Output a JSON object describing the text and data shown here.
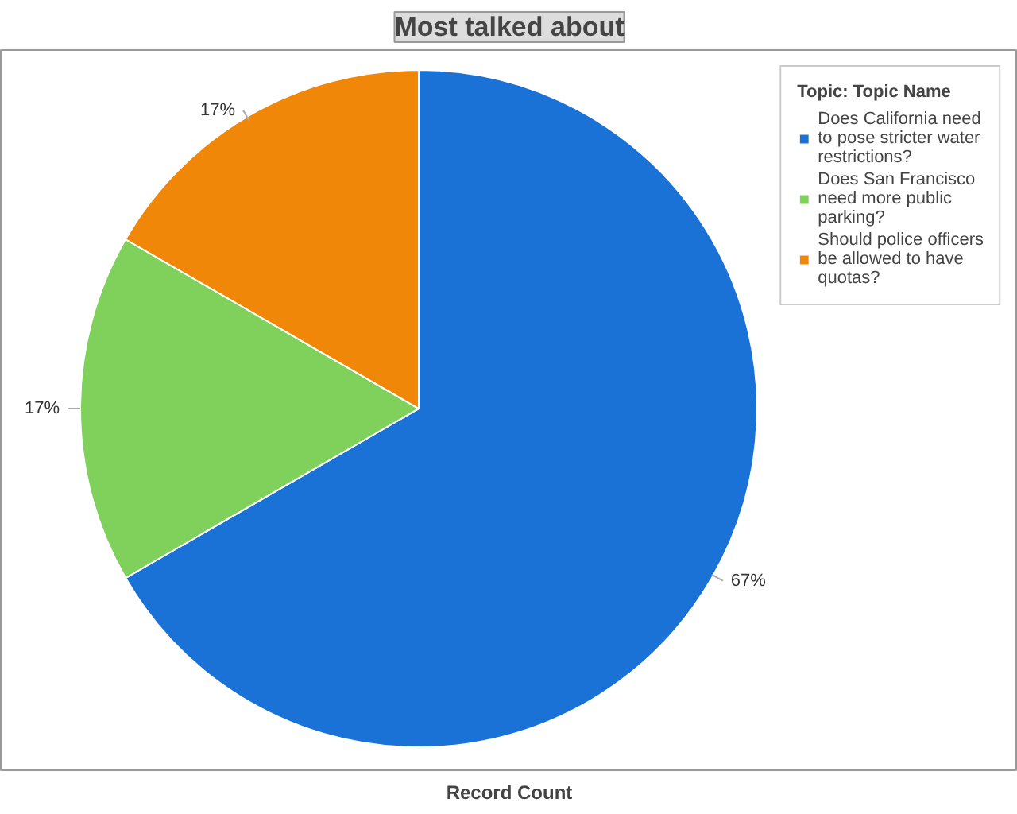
{
  "chart_data": {
    "type": "pie",
    "title": "Most talked about",
    "xlabel": "Record Count",
    "legend_title": "Topic: Topic Name",
    "categories": [
      "Does California need to pose stricter water restrictions?",
      "Does San Francisco need more public parking?",
      "Should police officers be allowed to have quotas?"
    ],
    "values": [
      66.67,
      16.67,
      16.67
    ],
    "value_labels": [
      "67%",
      "17%",
      "17%"
    ],
    "colors": [
      "#1a72d6",
      "#7fd15c",
      "#f08708"
    ],
    "legend": "top right"
  }
}
